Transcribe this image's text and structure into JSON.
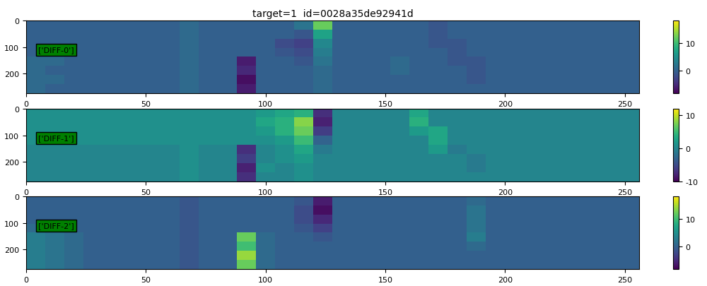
{
  "chart_data": {
    "type": "heatmap",
    "title": "target=1  id=0028a35de92941d",
    "xlim": [
      0,
      256
    ],
    "ylim": [
      273,
      0
    ],
    "xticks": [
      0,
      50,
      100,
      150,
      200,
      250
    ],
    "yticks": [
      0,
      100,
      200
    ],
    "panels": [
      {
        "label": "['DIFF-0']",
        "colorbar_range": [
          -8,
          18
        ],
        "colorbar_ticks": [
          0,
          10
        ],
        "cells": [
          [
            0,
            0,
            0,
            0,
            0,
            0,
            0,
            0,
            1,
            0,
            0,
            0,
            0,
            0,
            2,
            12,
            0,
            0,
            0,
            0,
            0,
            -1,
            0,
            0,
            0,
            0,
            0,
            0,
            0,
            0,
            0,
            0
          ],
          [
            0,
            0,
            0,
            0,
            0,
            0,
            0,
            0,
            1,
            0,
            0,
            0,
            0,
            0,
            -1,
            7,
            0,
            0,
            0,
            0,
            0,
            -1,
            0,
            0,
            0,
            0,
            0,
            0,
            0,
            0,
            0,
            0
          ],
          [
            0,
            0,
            0,
            0,
            0,
            0,
            0,
            0,
            1,
            0,
            0,
            0,
            0,
            -2,
            -3,
            4,
            0,
            0,
            0,
            0,
            0,
            -1,
            -1,
            0,
            0,
            0,
            0,
            0,
            0,
            0,
            0,
            0
          ],
          [
            0,
            0,
            0,
            0,
            0,
            0,
            0,
            0,
            1,
            0,
            0,
            0,
            0,
            -1,
            -2,
            3,
            0,
            0,
            0,
            0,
            0,
            0,
            -1,
            0,
            0,
            0,
            0,
            0,
            0,
            0,
            0,
            0
          ],
          [
            1,
            1,
            0,
            0,
            0,
            0,
            0,
            0,
            1,
            0,
            0,
            -6,
            0,
            0,
            -1,
            2,
            0,
            0,
            0,
            1,
            0,
            0,
            -1,
            -1,
            0,
            0,
            0,
            0,
            0,
            0,
            0,
            0
          ],
          [
            1,
            0,
            0,
            0,
            0,
            0,
            0,
            0,
            1,
            0,
            0,
            -5,
            0,
            0,
            0,
            1,
            0,
            0,
            0,
            1,
            0,
            0,
            0,
            -1,
            0,
            0,
            0,
            0,
            0,
            0,
            0,
            0
          ],
          [
            1,
            1,
            0,
            0,
            0,
            0,
            0,
            0,
            1,
            0,
            0,
            -7,
            0,
            0,
            0,
            1,
            0,
            0,
            0,
            0,
            0,
            0,
            0,
            -1,
            0,
            0,
            0,
            0,
            0,
            0,
            0,
            0
          ],
          [
            1,
            0,
            0,
            0,
            0,
            0,
            0,
            0,
            1,
            0,
            0,
            -6,
            0,
            0,
            0,
            1,
            0,
            0,
            0,
            0,
            0,
            0,
            0,
            0,
            0,
            0,
            0,
            0,
            0,
            0,
            0,
            0
          ]
        ]
      },
      {
        "label": "['DIFF-1']",
        "colorbar_range": [
          -10,
          12
        ],
        "colorbar_ticks": [
          -10,
          0,
          10
        ],
        "cells": [
          [
            1,
            1,
            1,
            1,
            1,
            1,
            1,
            1,
            1,
            1,
            1,
            1,
            2,
            3,
            4,
            -7,
            0,
            0,
            0,
            0,
            3,
            0,
            0,
            0,
            0,
            0,
            0,
            0,
            0,
            0,
            0,
            0
          ],
          [
            1,
            1,
            1,
            1,
            1,
            1,
            1,
            1,
            1,
            1,
            1,
            1,
            3,
            4,
            8,
            -8,
            0,
            0,
            0,
            0,
            4,
            0,
            0,
            0,
            0,
            0,
            0,
            0,
            0,
            0,
            0,
            0
          ],
          [
            1,
            1,
            1,
            1,
            1,
            1,
            1,
            1,
            1,
            1,
            1,
            1,
            2,
            4,
            7,
            -6,
            0,
            0,
            0,
            0,
            2,
            3,
            0,
            0,
            0,
            0,
            0,
            0,
            0,
            0,
            0,
            0
          ],
          [
            1,
            1,
            1,
            1,
            1,
            1,
            1,
            1,
            1,
            1,
            1,
            1,
            1,
            2,
            5,
            -3,
            0,
            0,
            0,
            0,
            0,
            3,
            0,
            0,
            0,
            0,
            0,
            0,
            0,
            0,
            0,
            0
          ],
          [
            0,
            0,
            0,
            0,
            0,
            0,
            0,
            0,
            1,
            0,
            0,
            -7,
            0,
            1,
            3,
            -1,
            0,
            0,
            0,
            0,
            0,
            2,
            -1,
            0,
            0,
            0,
            0,
            0,
            0,
            0,
            0,
            0
          ],
          [
            0,
            0,
            0,
            0,
            0,
            0,
            0,
            0,
            1,
            0,
            0,
            -6,
            0,
            1,
            2,
            0,
            0,
            0,
            0,
            0,
            0,
            0,
            0,
            -1,
            0,
            0,
            0,
            0,
            0,
            0,
            0,
            0
          ],
          [
            0,
            0,
            0,
            0,
            0,
            0,
            0,
            0,
            1,
            0,
            0,
            -8,
            1,
            0,
            1,
            0,
            0,
            0,
            0,
            0,
            0,
            0,
            0,
            -1,
            0,
            0,
            0,
            0,
            0,
            0,
            0,
            0
          ],
          [
            0,
            0,
            0,
            0,
            0,
            0,
            0,
            0,
            1,
            0,
            0,
            -7,
            0,
            0,
            1,
            0,
            0,
            0,
            0,
            0,
            0,
            0,
            0,
            0,
            0,
            0,
            0,
            0,
            0,
            0,
            0,
            0
          ]
        ]
      },
      {
        "label": "['DIFF-2']",
        "colorbar_range": [
          -8,
          18
        ],
        "colorbar_ticks": [
          0,
          10
        ],
        "cells": [
          [
            0,
            0,
            0,
            0,
            0,
            0,
            0,
            0,
            -1,
            0,
            0,
            0,
            0,
            0,
            -1,
            -6,
            0,
            0,
            0,
            0,
            0,
            0,
            0,
            1,
            0,
            0,
            0,
            0,
            0,
            0,
            0,
            0
          ],
          [
            0,
            0,
            0,
            0,
            0,
            0,
            0,
            0,
            -1,
            0,
            0,
            0,
            0,
            0,
            -2,
            -7,
            0,
            0,
            0,
            0,
            0,
            0,
            0,
            2,
            0,
            0,
            0,
            0,
            0,
            0,
            0,
            0
          ],
          [
            0,
            0,
            0,
            0,
            0,
            0,
            0,
            0,
            -1,
            0,
            0,
            0,
            0,
            0,
            -2,
            -5,
            0,
            0,
            0,
            0,
            0,
            0,
            0,
            2,
            0,
            0,
            0,
            0,
            0,
            0,
            0,
            0
          ],
          [
            1,
            0,
            0,
            0,
            0,
            0,
            0,
            0,
            -1,
            0,
            0,
            0,
            0,
            0,
            -1,
            -3,
            0,
            0,
            0,
            0,
            0,
            0,
            0,
            2,
            0,
            0,
            0,
            0,
            0,
            0,
            0,
            0
          ],
          [
            3,
            2,
            1,
            0,
            0,
            0,
            0,
            0,
            -1,
            0,
            0,
            12,
            1,
            0,
            0,
            -1,
            0,
            0,
            0,
            0,
            0,
            0,
            0,
            3,
            0,
            0,
            0,
            0,
            0,
            0,
            0,
            0
          ],
          [
            3,
            2,
            1,
            0,
            0,
            0,
            0,
            0,
            -1,
            0,
            0,
            10,
            1,
            0,
            0,
            0,
            0,
            0,
            0,
            0,
            0,
            0,
            0,
            1,
            0,
            0,
            0,
            0,
            0,
            0,
            0,
            0
          ],
          [
            3,
            2,
            1,
            0,
            0,
            0,
            0,
            0,
            -1,
            0,
            0,
            14,
            1,
            0,
            0,
            0,
            0,
            0,
            0,
            0,
            0,
            0,
            0,
            0,
            0,
            0,
            0,
            0,
            0,
            0,
            0,
            0
          ],
          [
            3,
            2,
            1,
            0,
            0,
            0,
            0,
            0,
            -1,
            0,
            0,
            12,
            1,
            0,
            0,
            0,
            0,
            0,
            0,
            0,
            0,
            0,
            0,
            0,
            0,
            0,
            0,
            0,
            0,
            0,
            0,
            0
          ]
        ]
      }
    ]
  }
}
